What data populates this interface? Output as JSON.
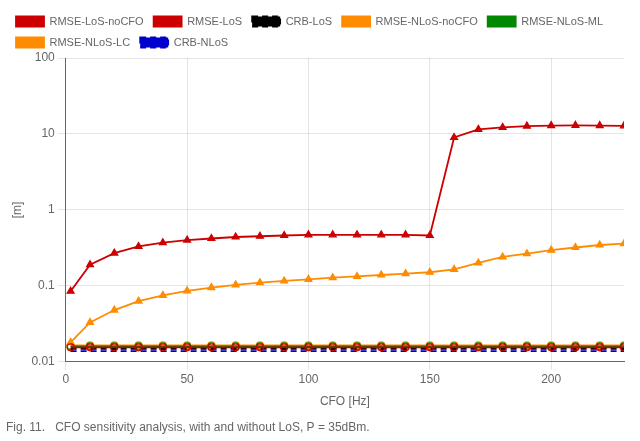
{
  "chart_data": {
    "type": "line",
    "title": "Fig. 11.   CFO sensitivity analysis, with and without LoS, P = 35dBm.",
    "xlabel": "CFO [Hz]",
    "ylabel": "[m]",
    "log": "y",
    "grid": true,
    "legend": "upper left",
    "xlim": [
      0,
      230
    ],
    "xticks": [
      0,
      50,
      100,
      150,
      200
    ],
    "ylim": [
      0.01,
      100
    ],
    "yticks": [
      0.01,
      0.1,
      1,
      10,
      100
    ],
    "x": [
      2,
      10,
      20,
      30,
      40,
      50,
      60,
      70,
      80,
      90,
      100,
      110,
      120,
      130,
      140,
      150,
      160,
      170,
      180,
      190,
      200,
      210,
      220,
      230
    ],
    "series": [
      {
        "name": "RMSE-LoS-noCFO",
        "color": "#cc0000",
        "marker": "triangle",
        "line_style": "solid",
        "values": [
          0.085,
          0.19,
          0.27,
          0.33,
          0.37,
          0.4,
          0.42,
          0.44,
          0.45,
          0.46,
          0.47,
          0.47,
          0.47,
          0.47,
          0.47,
          0.46,
          9.0,
          11.5,
          12.2,
          12.7,
          12.9,
          13.0,
          12.9,
          12.8
        ]
      },
      {
        "name": "RMSE-LoS",
        "color": "#cc0000",
        "marker": "open_circle",
        "line_style": "solid",
        "values": [
          0.0155,
          0.0155,
          0.0155,
          0.0155,
          0.0155,
          0.0155,
          0.0155,
          0.0155,
          0.0155,
          0.0155,
          0.0155,
          0.0155,
          0.0155,
          0.0155,
          0.0155,
          0.0155,
          0.0155,
          0.0155,
          0.0155,
          0.0155,
          0.0155,
          0.0155,
          0.0155,
          0.0155
        ]
      },
      {
        "name": "CRB-LoS",
        "color": "#000000",
        "marker": "none",
        "line_style": "dashed",
        "values": [
          0.0148,
          0.0148,
          0.0148,
          0.0148,
          0.0148,
          0.0148,
          0.0148,
          0.0148,
          0.0148,
          0.0148,
          0.0148,
          0.0148,
          0.0148,
          0.0148,
          0.0148,
          0.0148,
          0.0148,
          0.0148,
          0.0148,
          0.0148,
          0.0148,
          0.0148,
          0.0148,
          0.0148
        ]
      },
      {
        "name": "RMSE-NLoS-noCFO",
        "color": "#ff8c00",
        "marker": "triangle",
        "line_style": "solid",
        "values": [
          0.018,
          0.033,
          0.048,
          0.063,
          0.075,
          0.086,
          0.095,
          0.103,
          0.11,
          0.116,
          0.122,
          0.128,
          0.133,
          0.139,
          0.145,
          0.151,
          0.165,
          0.2,
          0.24,
          0.265,
          0.295,
          0.32,
          0.345,
          0.36
        ]
      },
      {
        "name": "RMSE-NLoS-ML",
        "color": "#008800",
        "marker": "open_circle",
        "line_style": "solid",
        "values": [
          0.016,
          0.016,
          0.016,
          0.016,
          0.016,
          0.016,
          0.016,
          0.016,
          0.016,
          0.016,
          0.016,
          0.016,
          0.016,
          0.016,
          0.016,
          0.016,
          0.016,
          0.016,
          0.016,
          0.016,
          0.016,
          0.016,
          0.016,
          0.016
        ]
      },
      {
        "name": "RMSE-NLoS-LC",
        "color": "#ff8c00",
        "marker": "open_circle",
        "line_style": "solid",
        "values": [
          0.0165,
          0.0165,
          0.0165,
          0.0165,
          0.0165,
          0.0165,
          0.0165,
          0.0165,
          0.0165,
          0.0165,
          0.0165,
          0.0165,
          0.0165,
          0.0165,
          0.0165,
          0.0165,
          0.0165,
          0.0165,
          0.0165,
          0.0165,
          0.0165,
          0.0165,
          0.0165,
          0.0165
        ]
      },
      {
        "name": "CRB-NLoS",
        "color": "#0000cc",
        "marker": "none",
        "line_style": "dashed",
        "values": [
          0.0138,
          0.0138,
          0.0138,
          0.0138,
          0.0138,
          0.0138,
          0.0138,
          0.0138,
          0.0138,
          0.0138,
          0.0138,
          0.0138,
          0.0138,
          0.0138,
          0.0138,
          0.0138,
          0.0138,
          0.0138,
          0.0138,
          0.0138,
          0.0138,
          0.0138,
          0.0138,
          0.0138
        ]
      }
    ]
  }
}
